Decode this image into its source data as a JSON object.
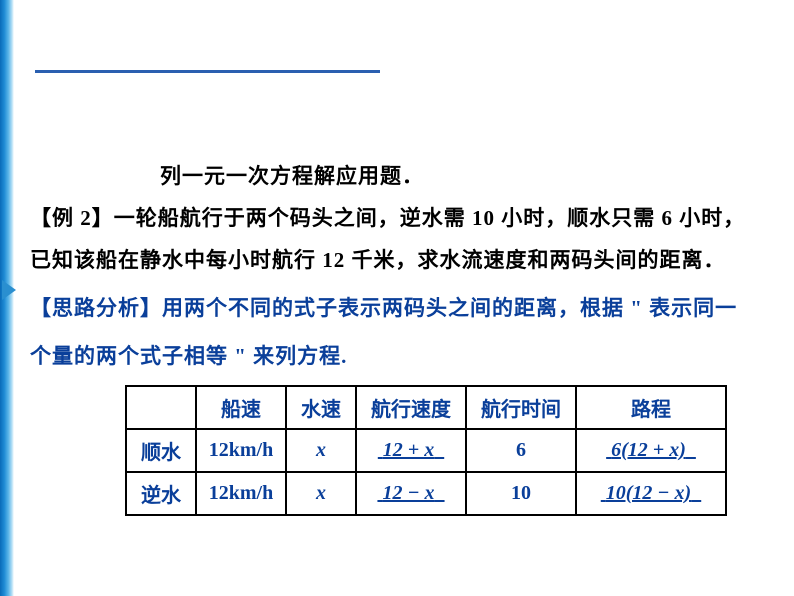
{
  "title_line": "列一元一次方程解应用题．",
  "example_label": "【例 2】",
  "example_text1": "一轮船航行于两个码头之间，逆水需 10 小时，顺水只需 6 小时，",
  "example_text2": "已知该船在静水中每小时航行 12 千米，求水流速度和两码头间的距离．",
  "analysis_label": "【思路分析】",
  "analysis_text1": "用两个不同的式子表示两码头之间的距离，根据 \" 表示同一",
  "analysis_text2": "个量的两个式子相等 \" 来列方程.",
  "table": {
    "headers": [
      "",
      "船速",
      "水速",
      "航行速度",
      "航行时间",
      "路程"
    ],
    "rows": [
      {
        "label": "顺水",
        "speed": "12km/h",
        "water": "x",
        "nav_speed": "12 + x",
        "time": "6",
        "distance": "6(12 + x)"
      },
      {
        "label": "逆水",
        "speed": "12km/h",
        "water": "x",
        "nav_speed": "12 − x",
        "time": "10",
        "distance": "10(12 − x)"
      }
    ]
  },
  "colors": {
    "blue_text": "#0a3f9a",
    "black_text": "#000000",
    "edge_gradient_start": "#0a6bb8",
    "underline": "#2a5fb0"
  }
}
